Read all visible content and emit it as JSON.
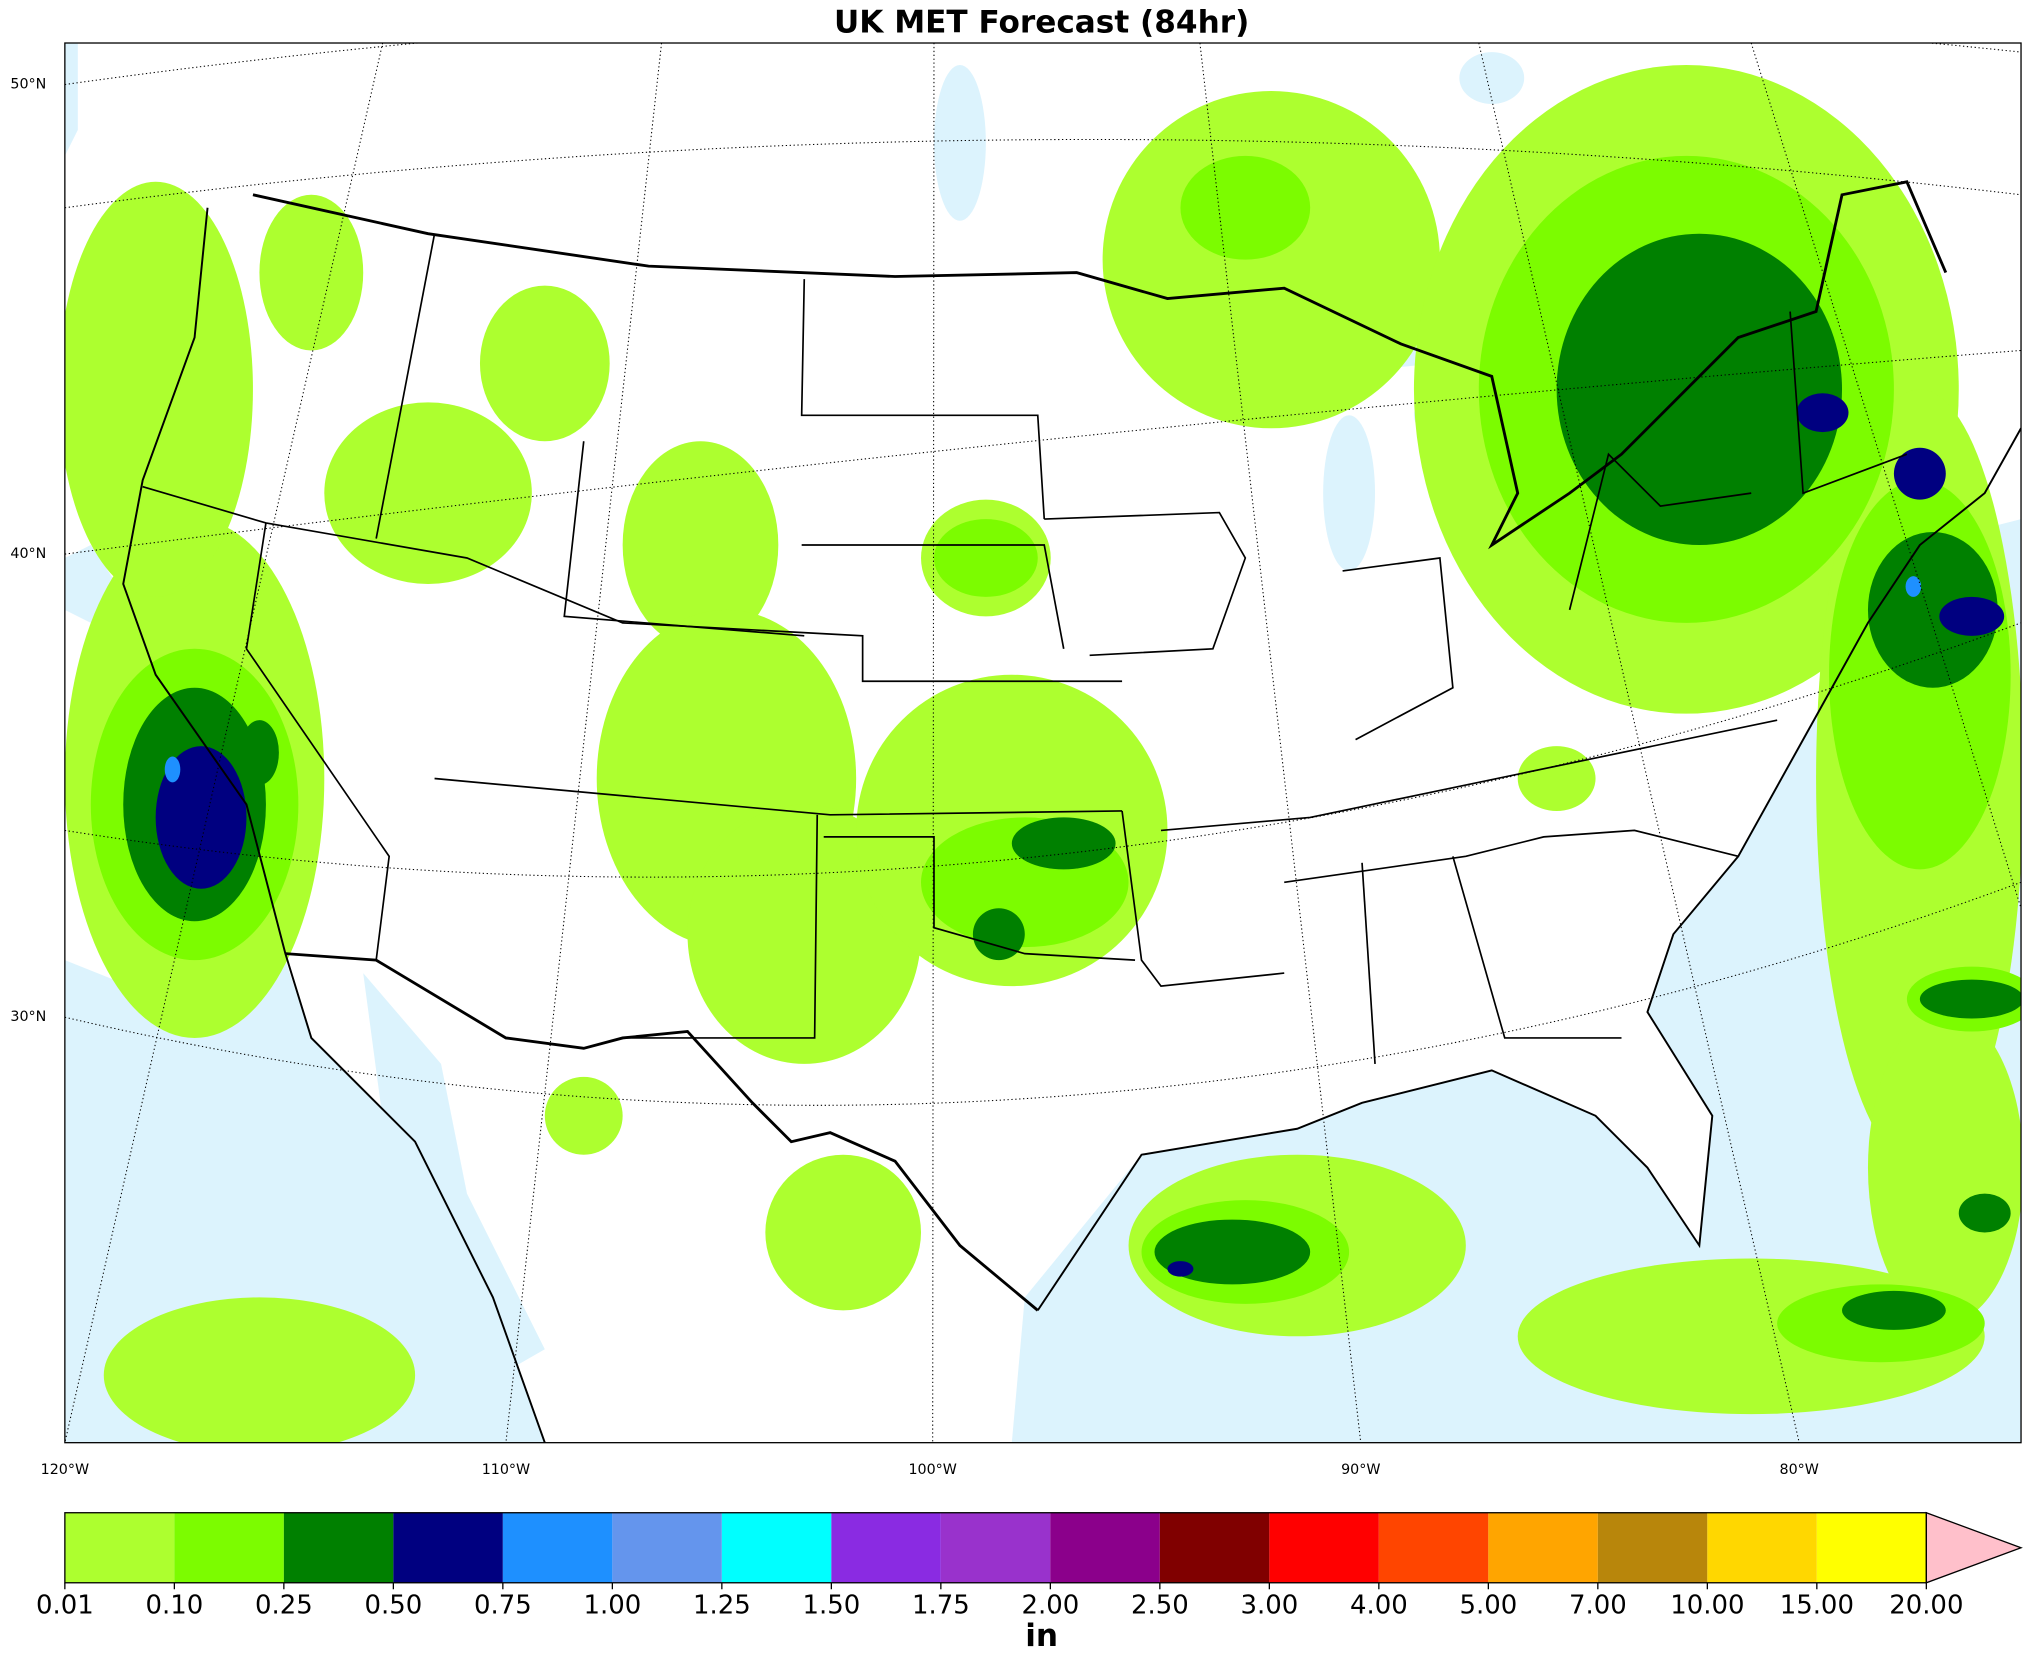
{
  "title": "UK MET Forecast (84hr)",
  "latitude_labels": [
    "50°N",
    "40°N",
    "30°N"
  ],
  "longitude_labels": [
    "120°W",
    "110°W",
    "100°W",
    "90°W",
    "80°W"
  ],
  "colorbar": {
    "unit": "in",
    "levels": [
      {
        "value": 0.01,
        "label": "0.01"
      },
      {
        "value": 0.1,
        "label": "0.10"
      },
      {
        "value": 0.25,
        "label": "0.25"
      },
      {
        "value": 0.5,
        "label": "0.50"
      },
      {
        "value": 0.75,
        "label": "0.75"
      },
      {
        "value": 1,
        "label": "1.00"
      },
      {
        "value": 1.25,
        "label": "1.25"
      },
      {
        "value": 1.5,
        "label": "1.50"
      },
      {
        "value": 1.75,
        "label": "1.75"
      },
      {
        "value": 2,
        "label": "2.00"
      },
      {
        "value": 2.5,
        "label": "2.50"
      },
      {
        "value": 3,
        "label": "3.00"
      },
      {
        "value": 4,
        "label": "4.00"
      },
      {
        "value": 5,
        "label": "5.00"
      },
      {
        "value": 7,
        "label": "7.00"
      },
      {
        "value": 10,
        "label": "10.00"
      },
      {
        "value": 15,
        "label": "15.00"
      },
      {
        "value": 20,
        "label": "20.00"
      }
    ],
    "colors": [
      "#adff2f",
      "#7cfc00",
      "#008000",
      "#000080",
      "#1e90ff",
      "#6495ed",
      "#00ffff",
      "#8a2be2",
      "#9932cc",
      "#8b008b",
      "#800000",
      "#ff0000",
      "#ff4500",
      "#ffa500",
      "#b8860b",
      "#ffd700",
      "#ffff00"
    ],
    "extend_color": "#ffc0cb"
  }
}
